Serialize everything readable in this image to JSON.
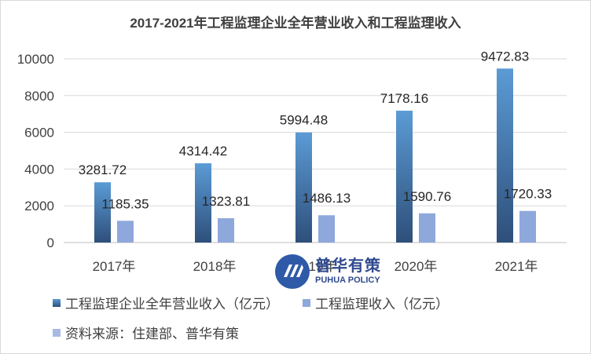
{
  "chart_data": {
    "type": "bar",
    "title": "2017-2021年工程监理企业全年营业收入和工程监理收入",
    "categories": [
      "2017年",
      "2018年",
      "2019年",
      "2020年",
      "2021年"
    ],
    "series": [
      {
        "name": "工程监理企业全年营业收入（亿元）",
        "values": [
          3281.72,
          4314.42,
          5994.48,
          7178.16,
          9472.83
        ],
        "color_top": "#5b9bd5",
        "color_bottom": "#2e4f7a"
      },
      {
        "name": "工程监理收入（亿元）",
        "values": [
          1185.35,
          1323.81,
          1486.13,
          1590.76,
          1720.33
        ],
        "color": "#8fa8dc"
      }
    ],
    "ylim": [
      0,
      10000
    ],
    "yticks": [
      0,
      2000,
      4000,
      6000,
      8000,
      10000
    ],
    "grid": true,
    "legend_position": "bottom-left"
  },
  "legend": {
    "source_label": "资料来源：住建部、普华有策",
    "source_color": "#a9b9e3"
  },
  "watermark": {
    "cn": "普华有策",
    "en": "PUHUA POLICY"
  }
}
